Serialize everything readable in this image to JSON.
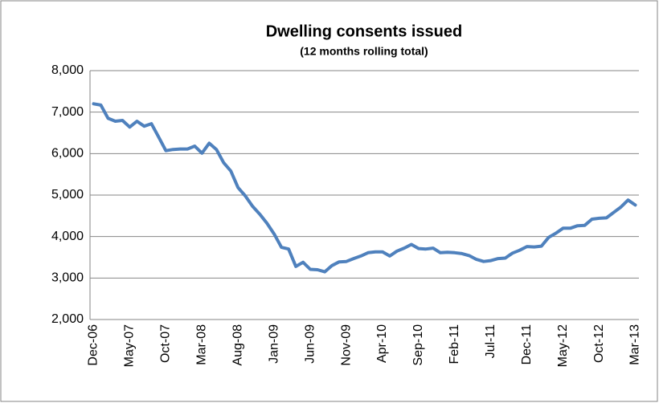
{
  "chart_data": {
    "type": "line",
    "title": "Dwelling consents issued",
    "subtitle": "(12 months rolling total)",
    "categories": [
      "Dec-06",
      null,
      null,
      null,
      null,
      "May-07",
      null,
      null,
      null,
      null,
      "Oct-07",
      null,
      null,
      null,
      null,
      "Mar-08",
      null,
      null,
      null,
      null,
      "Aug-08",
      null,
      null,
      null,
      null,
      "Jan-09",
      null,
      null,
      null,
      null,
      "Jun-09",
      null,
      null,
      null,
      null,
      "Nov-09",
      null,
      null,
      null,
      null,
      "Apr-10",
      null,
      null,
      null,
      null,
      "Sep-10",
      null,
      null,
      null,
      null,
      "Feb-11",
      null,
      null,
      null,
      null,
      "Jul-11",
      null,
      null,
      null,
      null,
      "Dec-11",
      null,
      null,
      null,
      null,
      "May-12",
      null,
      null,
      null,
      null,
      "Oct-12",
      null,
      null,
      null,
      null,
      "Mar-13"
    ],
    "series": [
      {
        "color": "#4f81bd",
        "values": [
          7200,
          7170,
          6850,
          6780,
          6800,
          6640,
          6780,
          6660,
          6720,
          6400,
          6070,
          6100,
          6110,
          6110,
          6180,
          6010,
          6250,
          6100,
          5780,
          5580,
          5180,
          4980,
          4730,
          4540,
          4320,
          4060,
          3740,
          3700,
          3280,
          3380,
          3210,
          3200,
          3150,
          3300,
          3390,
          3400,
          3470,
          3530,
          3610,
          3630,
          3630,
          3530,
          3650,
          3720,
          3810,
          3710,
          3700,
          3720,
          3610,
          3620,
          3610,
          3590,
          3540,
          3450,
          3400,
          3420,
          3470,
          3480,
          3600,
          3670,
          3760,
          3750,
          3770,
          3980,
          4080,
          4200,
          4200,
          4260,
          4270,
          4420,
          4440,
          4450,
          4580,
          4710,
          4880,
          4760
        ]
      }
    ],
    "ylim": [
      2000,
      8000
    ],
    "yticks": [
      {
        "value": 2000,
        "label": "2,000"
      },
      {
        "value": 3000,
        "label": "3,000"
      },
      {
        "value": 4000,
        "label": "4,000"
      },
      {
        "value": 5000,
        "label": "5,000"
      },
      {
        "value": 6000,
        "label": "6,000"
      },
      {
        "value": 7000,
        "label": "7,000"
      },
      {
        "value": 8000,
        "label": "8,000"
      }
    ],
    "grid": true
  }
}
